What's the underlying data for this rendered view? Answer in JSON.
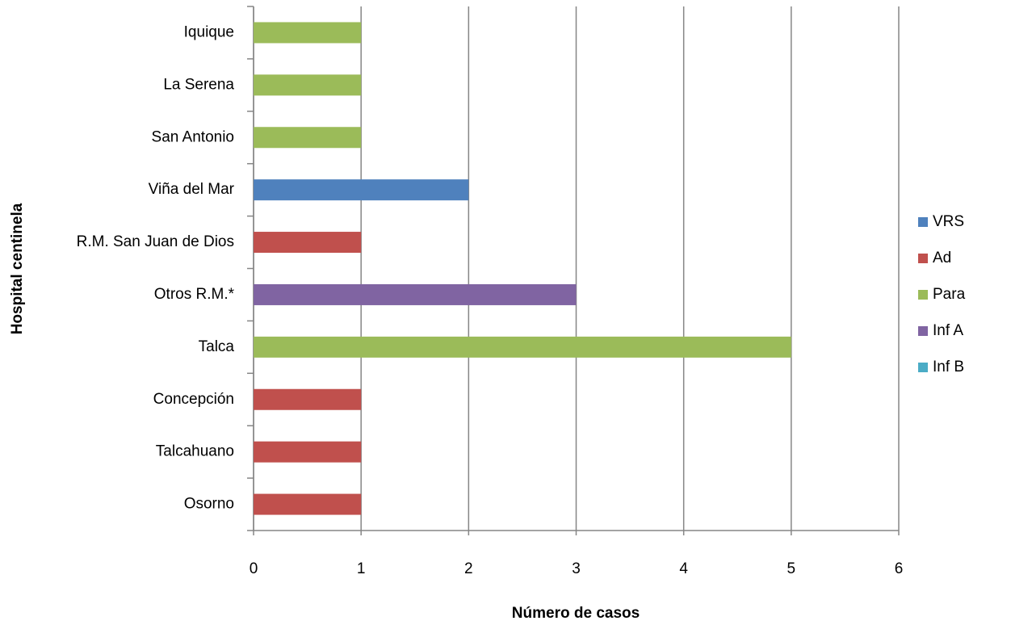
{
  "chart_data": {
    "type": "bar",
    "orientation": "horizontal",
    "stacked": true,
    "x_label": "Número de casos",
    "y_label": "Hospital centinela",
    "categories": [
      "Iquique",
      "La Serena",
      "San Antonio",
      "Viña del Mar",
      "R.M.  San Juan de Dios",
      "Otros R.M.*",
      "Talca",
      "Concepción",
      "Talcahuano",
      "Osorno"
    ],
    "series": [
      {
        "name": "VRS",
        "color": "#4f81bd",
        "values": [
          0,
          0,
          0,
          2,
          0,
          0,
          0,
          0,
          0,
          0
        ]
      },
      {
        "name": "Ad",
        "color": "#c0504d",
        "values": [
          0,
          0,
          0,
          0,
          1,
          0,
          0,
          1,
          1,
          1
        ]
      },
      {
        "name": "Para",
        "color": "#9bbb59",
        "values": [
          1,
          1,
          1,
          0,
          0,
          0,
          5,
          0,
          0,
          0
        ]
      },
      {
        "name": "Inf A",
        "color": "#8064a2",
        "values": [
          0,
          0,
          0,
          0,
          0,
          3,
          0,
          0,
          0,
          0
        ]
      },
      {
        "name": "Inf B",
        "color": "#4bacc6",
        "values": [
          0,
          0,
          0,
          0,
          0,
          0,
          0,
          0,
          0,
          0
        ]
      }
    ],
    "xlim": [
      0,
      6
    ],
    "xticks": [
      0,
      1,
      2,
      3,
      4,
      5,
      6
    ],
    "grid": true,
    "legend": "right"
  }
}
